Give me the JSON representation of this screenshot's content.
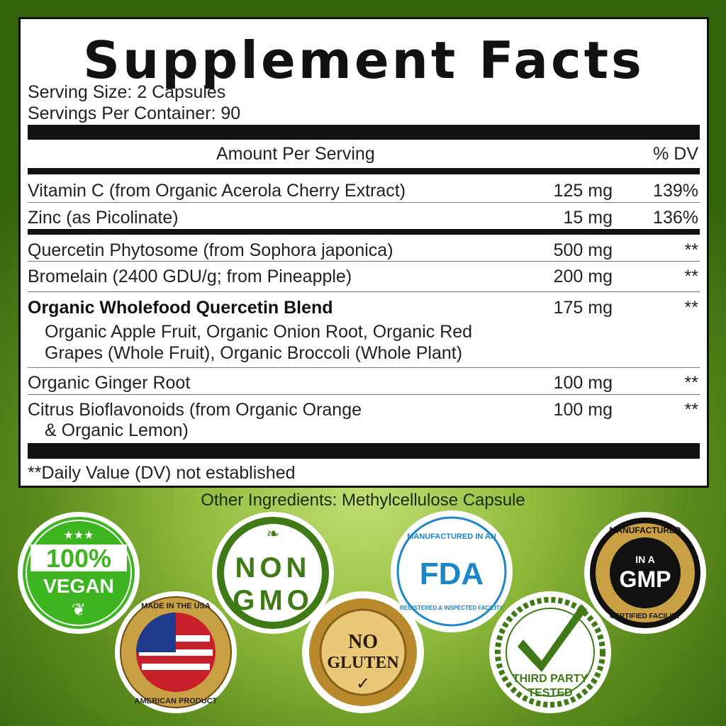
{
  "title": "Supplement Facts",
  "serving_size": "Serving Size: 2 Capsules",
  "servings_per_container": "Servings Per Container: 90",
  "header": {
    "amount": "Amount Per Serving",
    "dv": "% DV"
  },
  "rows": [
    {
      "name": "Vitamin C (from Organic Acerola Cherry Extract)",
      "amount": "125 mg",
      "dv": "139%"
    },
    {
      "name": "Zinc (as Picolinate)",
      "amount": "15 mg",
      "dv": "136%"
    },
    {
      "name": "Quercetin Phytosome (from Sophora japonica)",
      "amount": "500 mg",
      "dv": "**"
    },
    {
      "name": "Bromelain (2400 GDU/g; from Pineapple)",
      "amount": "200 mg",
      "dv": "**"
    },
    {
      "name": "Organic Wholefood Quercetin Blend",
      "amount": "175 mg",
      "dv": "**",
      "sub1": "Organic Apple Fruit, Organic Onion Root, Organic Red",
      "sub2": "Grapes (Whole Fruit), Organic Broccoli (Whole Plant)"
    },
    {
      "name": "Organic Ginger Root",
      "amount": "100 mg",
      "dv": "**"
    },
    {
      "name": "Citrus Bioflavonoids (from Organic Orange",
      "name2": "& Organic Lemon)",
      "amount": "100 mg",
      "dv": "**"
    }
  ],
  "footnote": "**Daily Value (DV) not established",
  "other_ingredients": "Other Ingredients: Methylcellulose Capsule",
  "badges": {
    "vegan": [
      "100%",
      "VEGAN"
    ],
    "usa": [
      "MADE IN THE USA",
      "AMERICAN PRODUCT"
    ],
    "nongmo": [
      "NON",
      "GMO"
    ],
    "gluten": [
      "NO",
      "GLUTEN"
    ],
    "fda": [
      "MANUFACTURED IN AN",
      "FDA",
      "REGISTERED & INSPECTED FACILITY"
    ],
    "third": [
      "THIRD PARTY",
      "TESTED"
    ],
    "gmp": [
      "MANUFACTURED",
      "IN A",
      "GMP",
      "CERTIFIED FACILITY"
    ]
  },
  "colors": {
    "vegan": "#3cb521",
    "gmo": "#3f7a16",
    "fda": "#1b86c8",
    "gold": "#c9a043",
    "third": "#3f7a16"
  }
}
